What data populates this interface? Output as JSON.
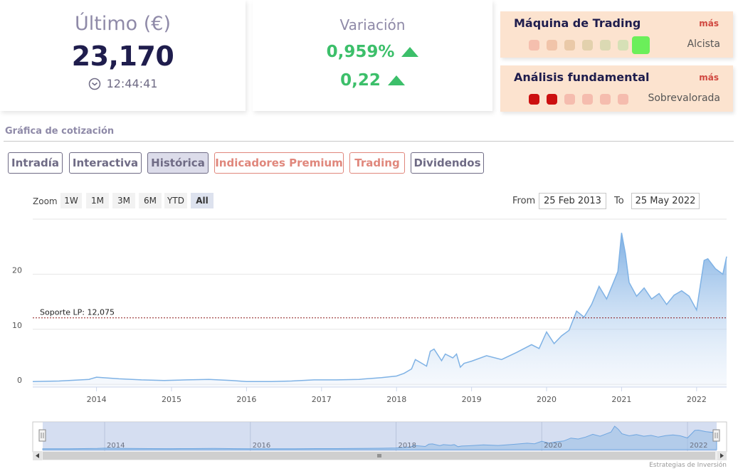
{
  "last_card": {
    "title": "Último (€)",
    "price": "23,170",
    "time": "12:44:41"
  },
  "variation_card": {
    "title": "Variación",
    "percent": "0,959%",
    "absolute": "0,22",
    "color": "#3cbf6a"
  },
  "trading_machine": {
    "title": "Máquina de Trading",
    "more": "más",
    "status": "Alcista",
    "dots": [
      "#f5bfae",
      "#f1c4a9",
      "#eac9a8",
      "#e3d1ad",
      "#dbd9b3",
      "#d6e0b6",
      "#6bef5a"
    ]
  },
  "fundamental": {
    "title": "Análisis fundamental",
    "more": "más",
    "status": "Sobrevalorada",
    "dots": [
      "#cc1010",
      "#cc1010",
      "#f5bcae",
      "#f5bcae",
      "#f5bcae",
      "#f5bcae"
    ]
  },
  "section": {
    "title": "Gráfica de cotización"
  },
  "tabs": [
    {
      "label": "Intradía"
    },
    {
      "label": "Interactiva"
    },
    {
      "label": "Histórica"
    },
    {
      "label": "Indicadores Premium"
    },
    {
      "label": "Trading"
    },
    {
      "label": "Dividendos"
    }
  ],
  "range_selector": {
    "zoom_label": "Zoom",
    "buttons": [
      "1W",
      "1M",
      "3M",
      "6M",
      "YTD",
      "All"
    ],
    "selected": "All",
    "from_label": "From",
    "from_value": "25 Feb 2013",
    "to_label": "To",
    "to_value": "25 May 2022"
  },
  "chart_data": {
    "type": "area",
    "series": [
      {
        "x": [
          2013.15,
          2013.5,
          2013.9,
          2014.0,
          2014.3,
          2014.6,
          2014.9,
          2015.2,
          2015.5,
          2015.8,
          2016.0,
          2016.3,
          2016.6,
          2016.9,
          2017.2,
          2017.5,
          2017.8,
          2018.0,
          2018.1,
          2018.2,
          2018.25,
          2018.4,
          2018.45,
          2018.5,
          2018.6,
          2018.65,
          2018.75,
          2018.8,
          2018.85,
          2018.9,
          2019.0,
          2019.2,
          2019.4,
          2019.6,
          2019.8,
          2019.9,
          2020.0,
          2020.1,
          2020.2,
          2020.3,
          2020.4,
          2020.5,
          2020.6,
          2020.7,
          2020.8,
          2020.9,
          2020.95,
          2021.0,
          2021.05,
          2021.1,
          2021.2,
          2021.3,
          2021.4,
          2021.5,
          2021.6,
          2021.7,
          2021.8,
          2021.9,
          2022.0,
          2022.1,
          2022.15,
          2022.25,
          2022.35,
          2022.4
        ],
        "y": [
          0.5,
          0.6,
          0.9,
          1.3,
          1.0,
          0.8,
          0.7,
          0.8,
          0.9,
          0.7,
          0.5,
          0.5,
          0.6,
          0.8,
          0.8,
          0.9,
          1.2,
          1.5,
          2.0,
          2.8,
          4.5,
          3.3,
          6.0,
          6.4,
          4.3,
          5.5,
          4.8,
          5.5,
          3.1,
          3.8,
          4.2,
          5.2,
          4.5,
          5.8,
          7.2,
          6.5,
          9.5,
          7.4,
          8.8,
          9.8,
          13.3,
          12.2,
          14.5,
          17.8,
          15.5,
          18.8,
          20.5,
          27.5,
          23.8,
          18.5,
          16.0,
          17.5,
          15.5,
          16.5,
          14.5,
          16.2,
          17.0,
          16.0,
          13.5,
          22.5,
          22.8,
          21.0,
          20.0,
          23.2
        ]
      }
    ],
    "x_ticks": [
      "2014",
      "2015",
      "2016",
      "2017",
      "2018",
      "2019",
      "2020",
      "2021",
      "2022"
    ],
    "y_ticks": [
      "0",
      "10",
      "20"
    ],
    "xlim": [
      2013.15,
      2022.4
    ],
    "ylim": [
      -0.5,
      30
    ],
    "grid": true,
    "plot_line": {
      "label": "Soporte LP: 12,075",
      "value": 12.075,
      "color": "#8b1a1a"
    },
    "navigator_ticks": [
      "2014",
      "2016",
      "2018",
      "2020",
      "2022"
    ],
    "line_color": "#7fb2e5",
    "credits": "Estrategias de Inversión"
  }
}
